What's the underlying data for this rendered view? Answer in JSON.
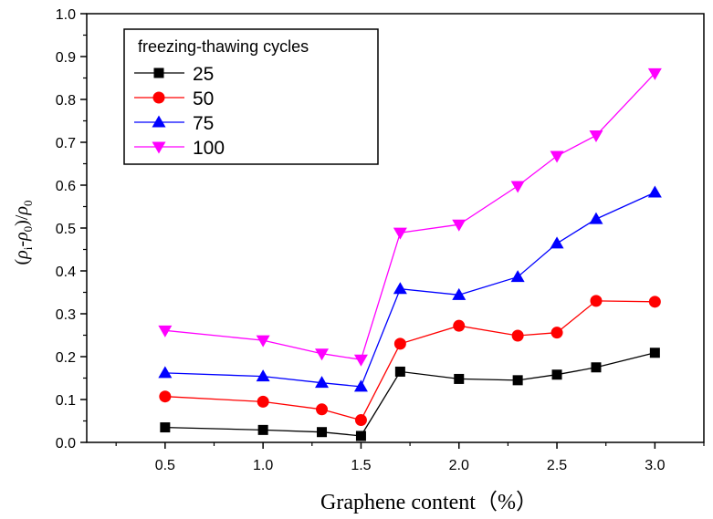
{
  "chart_data": {
    "type": "line",
    "title": "",
    "xlabel": "Graphene content（%）",
    "ylabel": "(ρi-ρ0)/ρ0",
    "ylabel_parts": {
      "open": "(",
      "rho_i": "ρ",
      "sub_i": "i",
      "dash": "-",
      "rho_0a": "ρ",
      "sub_0a": "0",
      "close_slash": ")/",
      "rho_0b": "ρ",
      "sub_0b": "0"
    },
    "xlim": [
      0.1,
      3.25
    ],
    "ylim": [
      0.0,
      1.0
    ],
    "x_ticks": [
      "0.5",
      "1.0",
      "1.5",
      "2.0",
      "2.5",
      "3.0"
    ],
    "y_ticks": [
      "0.0",
      "0.1",
      "0.2",
      "0.3",
      "0.4",
      "0.5",
      "0.6",
      "0.7",
      "0.8",
      "0.9",
      "1.0"
    ],
    "legend_title": "freezing-thawing cycles",
    "legend_position": "top-left",
    "x": [
      0.5,
      1.0,
      1.3,
      1.5,
      1.7,
      2.0,
      2.3,
      2.5,
      2.7,
      3.0
    ],
    "series": [
      {
        "name": "25",
        "color": "#000000",
        "marker": "square",
        "values": [
          0.035,
          0.029,
          0.024,
          0.015,
          0.165,
          0.148,
          0.145,
          0.158,
          0.175,
          0.209
        ]
      },
      {
        "name": "50",
        "color": "#ff0000",
        "marker": "circle",
        "values": [
          0.107,
          0.095,
          0.077,
          0.052,
          0.23,
          0.272,
          0.249,
          0.256,
          0.33,
          0.328
        ]
      },
      {
        "name": "75",
        "color": "#0000ff",
        "marker": "triangle-up",
        "values": [
          0.162,
          0.154,
          0.139,
          0.13,
          0.358,
          0.344,
          0.386,
          0.464,
          0.521,
          0.583
        ]
      },
      {
        "name": "100",
        "color": "#ff00ff",
        "marker": "triangle-down",
        "values": [
          0.261,
          0.238,
          0.207,
          0.193,
          0.489,
          0.508,
          0.598,
          0.668,
          0.716,
          0.861
        ]
      }
    ]
  }
}
